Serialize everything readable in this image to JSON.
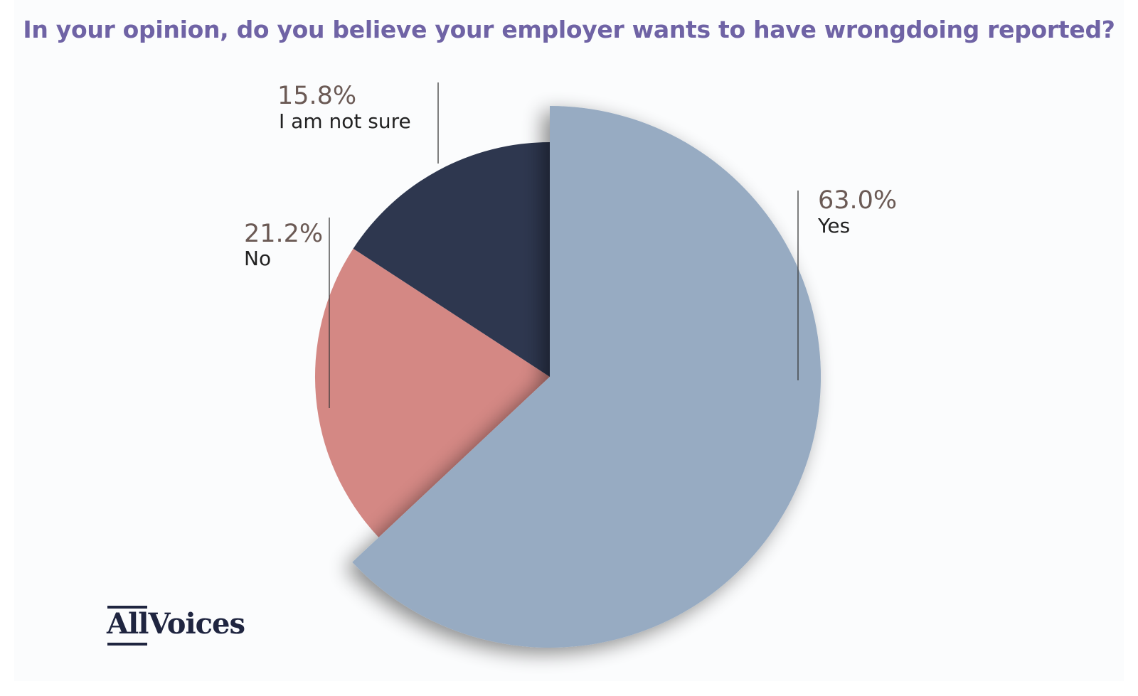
{
  "chart_data": {
    "type": "pie",
    "title": "In your opinion, do you believe your employer wants to have wrongdoing reported?",
    "slices": [
      {
        "label": "Yes",
        "value": 63.0,
        "value_label": "63.0%",
        "color": "#97abc2"
      },
      {
        "label": "No",
        "value": 21.2,
        "value_label": "21.2%",
        "color": "#d48884"
      },
      {
        "label": "I am not sure",
        "value": 15.8,
        "value_label": "15.8%",
        "color": "#2e374f"
      }
    ],
    "start_angle_deg": 0,
    "direction": "clockwise",
    "largest_slice_exploded": true
  },
  "brand": {
    "logo_part1": "All",
    "logo_part2": "Voices"
  }
}
